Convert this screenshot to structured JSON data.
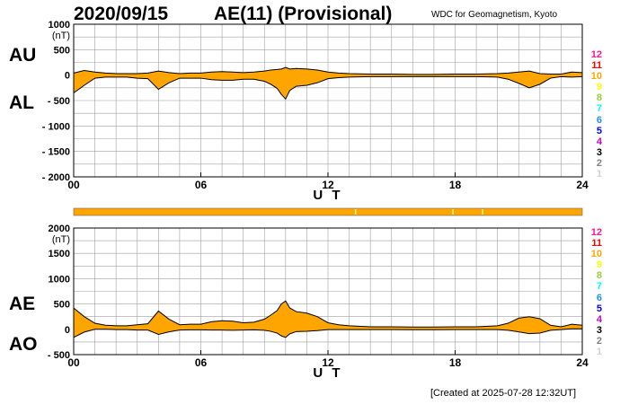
{
  "header": {
    "date": "2020/09/15",
    "index_title": "AE(11) (Provisional)",
    "source": "WDC for Geomagnetism, Kyoto",
    "created": "[Created at 2025-07-28 12:32UT]"
  },
  "side_labels": {
    "top_upper": "AU",
    "top_lower": "AL",
    "bottom_upper": "AE",
    "bottom_lower": "AO"
  },
  "legend": {
    "numbers": [
      "12",
      "11",
      "10",
      "9",
      "8",
      "7",
      "6",
      "5",
      "4",
      "3",
      "2",
      "1"
    ],
    "colors": [
      "#ff1493",
      "#ff0000",
      "#ffa500",
      "#ffff00",
      "#9acd32",
      "#00ffff",
      "#1e90ff",
      "#0000ff",
      "#cc00cc",
      "#000000",
      "#808080",
      "#d3d3d3"
    ]
  },
  "colors": {
    "fill": "#ffa500",
    "line": "#000000",
    "grid": "#a0a0a0",
    "quality_mark": "#ffff99"
  },
  "quality_bar": {
    "marks_ut": [
      13.3,
      17.9,
      19.3
    ]
  },
  "chart_data": [
    {
      "type": "area",
      "title": "AU / AL",
      "xlabel": "U T",
      "ylabel": "(nT)",
      "xlim": [
        0,
        24
      ],
      "ylim": [
        -2000,
        1000
      ],
      "x_ticks": [
        "00",
        "06",
        "12",
        "18",
        "24"
      ],
      "y_ticks": [
        "1000",
        "500",
        "0",
        "- 500",
        "- 1000",
        "- 1500",
        "- 2000"
      ],
      "x": [
        0,
        0.5,
        1,
        1.5,
        2,
        2.5,
        3,
        3.5,
        4,
        4.5,
        5,
        5.5,
        6,
        6.5,
        7,
        7.5,
        8,
        8.5,
        9,
        9.3,
        9.6,
        9.8,
        10,
        10.2,
        10.5,
        11,
        11.5,
        12,
        12.5,
        13,
        14,
        15,
        16,
        17,
        18,
        19,
        20,
        20.5,
        21,
        21.5,
        22,
        22.5,
        23,
        23.5,
        24
      ],
      "series": [
        {
          "name": "AU",
          "values": [
            40,
            90,
            60,
            40,
            30,
            30,
            30,
            40,
            80,
            50,
            30,
            40,
            40,
            60,
            70,
            60,
            50,
            60,
            80,
            100,
            110,
            120,
            150,
            120,
            130,
            120,
            100,
            60,
            40,
            30,
            20,
            20,
            15,
            15,
            20,
            20,
            30,
            40,
            60,
            80,
            30,
            20,
            20,
            60,
            50
          ]
        },
        {
          "name": "AL",
          "values": [
            -350,
            -200,
            -60,
            -40,
            -40,
            -40,
            -60,
            -70,
            -280,
            -150,
            -60,
            -60,
            -60,
            -90,
            -100,
            -100,
            -80,
            -80,
            -120,
            -180,
            -260,
            -380,
            -470,
            -300,
            -220,
            -200,
            -150,
            -70,
            -50,
            -40,
            -30,
            -30,
            -30,
            -30,
            -30,
            -30,
            -40,
            -80,
            -160,
            -250,
            -180,
            -60,
            -30,
            -40,
            -30
          ]
        }
      ]
    },
    {
      "type": "area",
      "title": "AE / AO",
      "xlabel": "U T",
      "ylabel": "(nT)",
      "xlim": [
        0,
        24
      ],
      "ylim": [
        -500,
        2000
      ],
      "x_ticks": [
        "00",
        "06",
        "12",
        "18",
        "24"
      ],
      "y_ticks": [
        "2000",
        "1500",
        "1000",
        "500",
        "0",
        "- 500"
      ],
      "x": [
        0,
        0.5,
        1,
        1.5,
        2,
        2.5,
        3,
        3.5,
        4,
        4.5,
        5,
        5.5,
        6,
        6.5,
        7,
        7.5,
        8,
        8.5,
        9,
        9.3,
        9.6,
        9.8,
        10,
        10.2,
        10.5,
        11,
        11.5,
        12,
        12.5,
        13,
        14,
        15,
        16,
        17,
        18,
        19,
        20,
        20.5,
        21,
        21.5,
        22,
        22.5,
        23,
        23.5,
        24
      ],
      "series": [
        {
          "name": "AE",
          "values": [
            420,
            250,
            120,
            80,
            70,
            70,
            90,
            110,
            360,
            200,
            90,
            100,
            100,
            150,
            170,
            160,
            130,
            140,
            200,
            280,
            370,
            500,
            560,
            420,
            350,
            320,
            250,
            130,
            90,
            70,
            50,
            50,
            45,
            45,
            50,
            50,
            70,
            120,
            220,
            250,
            210,
            80,
            50,
            100,
            80
          ]
        },
        {
          "name": "AO",
          "values": [
            -160,
            -55,
            0,
            0,
            -5,
            -5,
            -15,
            -15,
            -100,
            -50,
            -15,
            -10,
            -10,
            -15,
            -15,
            -20,
            -15,
            -10,
            -20,
            -40,
            -75,
            -130,
            -160,
            -90,
            -45,
            -40,
            -25,
            -5,
            -5,
            -5,
            -5,
            -5,
            -8,
            -8,
            -5,
            -5,
            -5,
            -20,
            -50,
            -85,
            -75,
            -20,
            -5,
            10,
            10
          ]
        }
      ]
    }
  ]
}
